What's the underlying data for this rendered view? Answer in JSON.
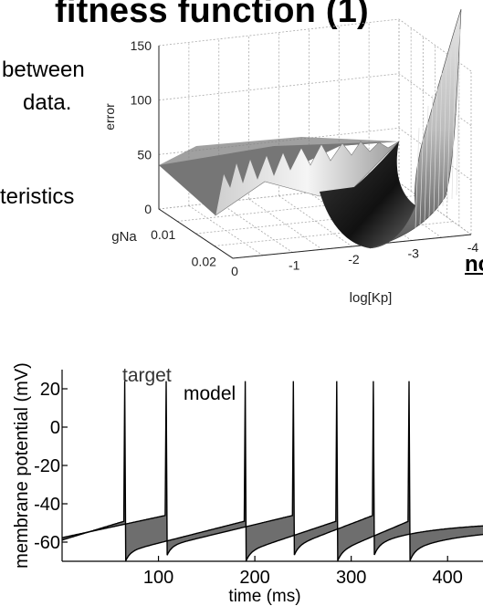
{
  "slide": {
    "title": "fitness function (1)",
    "text_line1": "between",
    "text_line2": "data.",
    "text_line3": "teristics",
    "text_line4": "nce"
  },
  "chart_data": [
    {
      "type": "surface",
      "title": "",
      "zlabel": "error",
      "ylabel": "gNa",
      "xlabel": "log[Kp]",
      "z_ticks": [
        "0",
        "50",
        "100",
        "150"
      ],
      "gna_ticks": [
        "0.01",
        "0.02"
      ],
      "logkp_ticks": [
        "0",
        "-1",
        "-2",
        "-3",
        "-4"
      ],
      "zlim": [
        0,
        150
      ],
      "grid": true
    },
    {
      "type": "line",
      "title": "",
      "xlabel": "time (ms)",
      "ylabel": "membrane potential (mV)",
      "xlim": [
        0,
        450
      ],
      "ylim": [
        -70,
        30
      ],
      "x_ticks": [
        100,
        200,
        300,
        400
      ],
      "y_ticks": [
        20,
        0,
        -20,
        -40,
        -60
      ],
      "annotations": [
        "target",
        "model"
      ],
      "series": [
        {
          "name": "target",
          "baseline": -65,
          "spike_peak": 24,
          "spike_times_ms": [
            65,
            190,
            285,
            360
          ]
        },
        {
          "name": "model",
          "baseline": -62,
          "spike_peak": 24,
          "spike_times_ms": [
            108,
            240,
            323
          ]
        }
      ]
    }
  ]
}
